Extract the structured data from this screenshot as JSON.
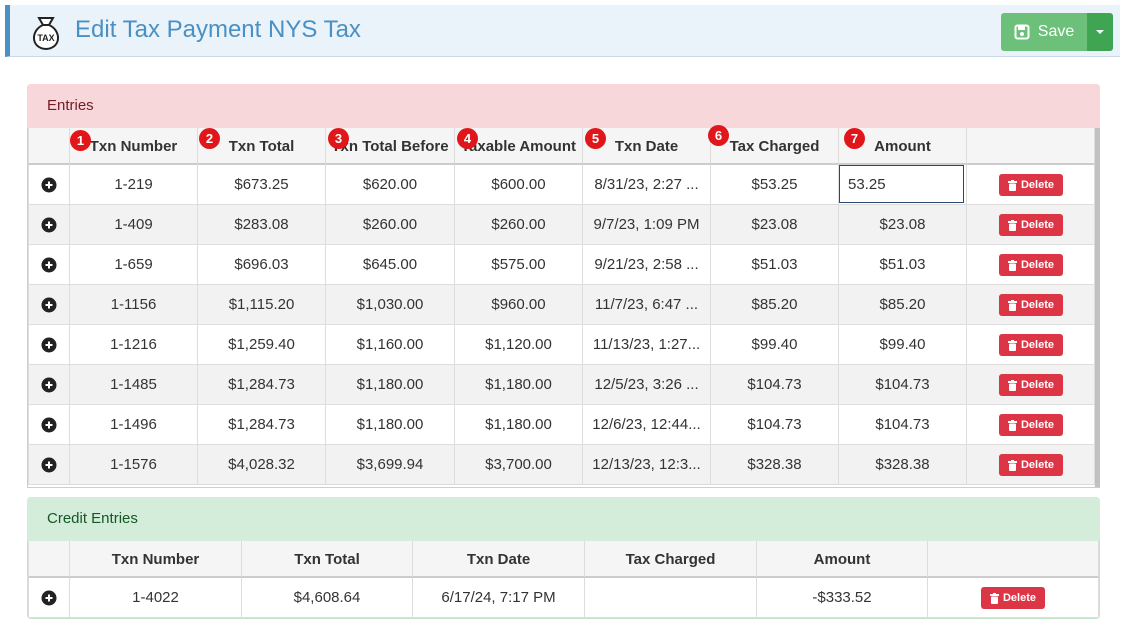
{
  "header": {
    "icon_label": "TAX",
    "title": "Edit Tax Payment NYS Tax",
    "save_button": "Save"
  },
  "entries": {
    "title": "Entries",
    "badges": [
      "1",
      "2",
      "3",
      "4",
      "5",
      "6",
      "7"
    ],
    "columns": [
      "Txn Number",
      "Txn Total",
      "Txn Total Before",
      "Taxable Amount",
      "Txn Date",
      "Tax Charged",
      "Amount"
    ],
    "rows": [
      [
        "1-219",
        "$673.25",
        "$620.00",
        "$600.00",
        "8/31/23, 2:27 ...",
        "$53.25",
        "53.25"
      ],
      [
        "1-409",
        "$283.08",
        "$260.00",
        "$260.00",
        "9/7/23, 1:09 PM",
        "$23.08",
        "$23.08"
      ],
      [
        "1-659",
        "$696.03",
        "$645.00",
        "$575.00",
        "9/21/23, 2:58 ...",
        "$51.03",
        "$51.03"
      ],
      [
        "1-1156",
        "$1,115.20",
        "$1,030.00",
        "$960.00",
        "11/7/23, 6:47 ...",
        "$85.20",
        "$85.20"
      ],
      [
        "1-1216",
        "$1,259.40",
        "$1,160.00",
        "$1,120.00",
        "11/13/23, 1:27...",
        "$99.40",
        "$99.40"
      ],
      [
        "1-1485",
        "$1,284.73",
        "$1,180.00",
        "$1,180.00",
        "12/5/23, 3:26 ...",
        "$104.73",
        "$104.73"
      ],
      [
        "1-1496",
        "$1,284.73",
        "$1,180.00",
        "$1,180.00",
        "12/6/23, 12:44...",
        "$104.73",
        "$104.73"
      ],
      [
        "1-1576",
        "$4,028.32",
        "$3,699.94",
        "$3,700.00",
        "12/13/23, 12:3...",
        "$328.38",
        "$328.38"
      ]
    ],
    "delete_label": "Delete"
  },
  "credit_entries": {
    "title": "Credit Entries",
    "columns": [
      "Txn Number",
      "Txn Total",
      "Txn Date",
      "Tax Charged",
      "Amount"
    ],
    "rows": [
      [
        "1-4022",
        "$4,608.64",
        "6/17/24, 7:17 PM",
        null,
        "-$333.52"
      ]
    ],
    "delete_label": "Delete"
  }
}
